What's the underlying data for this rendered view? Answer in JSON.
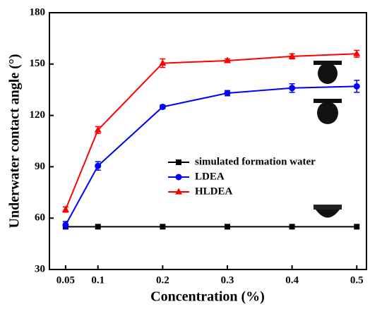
{
  "chart_data": {
    "type": "line",
    "x_label": "Concentration (%)",
    "y_label": "Underwater contact angle (°)",
    "x": [
      0.05,
      0.1,
      0.2,
      0.3,
      0.4,
      0.5
    ],
    "series": [
      {
        "name": "simulated formation water",
        "color": "#000000",
        "marker": "square",
        "values": [
          55,
          55,
          55,
          55,
          55,
          55
        ]
      },
      {
        "name": "LDEA",
        "color": "#0000ff",
        "marker": "circle",
        "values": [
          56,
          90.5,
          125,
          133,
          136,
          137
        ],
        "errors": [
          2,
          2.5,
          1,
          1.5,
          2.5,
          3.5
        ]
      },
      {
        "name": "HLDEA",
        "color": "#ff0000",
        "marker": "triangle",
        "values": [
          65,
          111.5,
          150.5,
          152,
          154.5,
          156
        ],
        "errors": [
          1.5,
          2,
          2.5,
          1,
          1.5,
          2
        ]
      }
    ],
    "xlim": [
      0.025,
      0.515
    ],
    "xticks": [
      0.05,
      0.1,
      0.2,
      0.3,
      0.4,
      0.5
    ],
    "ylim": [
      30,
      180
    ],
    "yticks": [
      30,
      60,
      90,
      120,
      150,
      180
    ]
  }
}
